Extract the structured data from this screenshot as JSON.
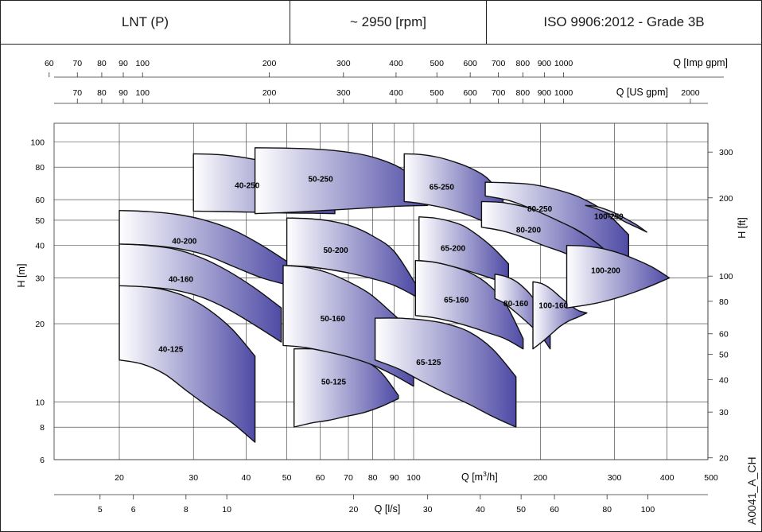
{
  "header": {
    "series_label": "LNT (P)",
    "speed_label": "~ 2950 [rpm]",
    "tolerance_label": "ISO 9906:2012 - Grade 3B"
  },
  "side_id": "A0041_A_CH",
  "colors": {
    "curve_dark": "#4f4ba6",
    "curve_light": "#ffffff",
    "outline": "#111111",
    "grid": "#333333"
  },
  "chart_data": {
    "type": "area",
    "title": "",
    "x_scale": "log",
    "y_scale": "log",
    "xlabel": "Q [m³/h]",
    "ylabel": "H [m]",
    "xlim": [
      14,
      500
    ],
    "ylim": [
      6,
      118
    ],
    "grid": true,
    "x_ticks": [
      20,
      30,
      40,
      50,
      60,
      70,
      80,
      90,
      100,
      200,
      300,
      400,
      500
    ],
    "y_ticks": [
      6,
      8,
      10,
      20,
      30,
      40,
      50,
      60,
      80,
      100
    ],
    "secondary_axes": {
      "imp_gpm": {
        "label": "Q [Imp gpm]",
        "ticks": [
          60,
          70,
          80,
          90,
          100,
          200,
          300,
          400,
          500,
          600,
          700,
          800,
          900,
          1000
        ]
      },
      "us_gpm": {
        "label": "Q [US gpm]",
        "ticks": [
          70,
          80,
          90,
          100,
          200,
          300,
          400,
          500,
          600,
          700,
          800,
          900,
          1000,
          2000
        ]
      },
      "ls": {
        "label": "Q [l/s]",
        "ticks": [
          5,
          6,
          8,
          10,
          20,
          30,
          40,
          50,
          60,
          80,
          100
        ]
      },
      "ft": {
        "label": "H [ft]",
        "ticks": [
          20,
          30,
          40,
          50,
          60,
          80,
          100,
          200,
          300
        ]
      }
    },
    "series": [
      {
        "name": "40-125",
        "q_range": [
          20,
          42
        ],
        "h_top": [
          28,
          27.8,
          27,
          25.3,
          22.5,
          19,
          15
        ],
        "h_bottom": [
          14.5,
          14,
          12.8,
          11,
          9.5,
          8.3,
          7
        ]
      },
      {
        "name": "40-160",
        "q_range": [
          20,
          48.5
        ],
        "h_top": [
          40.5,
          40,
          38.8,
          36,
          32,
          27.5,
          23
        ],
        "h_bottom": [
          28,
          27.7,
          27,
          25.4,
          22.8,
          19.8,
          17
        ]
      },
      {
        "name": "40-200",
        "q_range": [
          20,
          51
        ],
        "h_top": [
          54.5,
          54,
          52.7,
          50,
          45.8,
          40,
          34
        ],
        "h_bottom": [
          40.5,
          40.1,
          39,
          36.8,
          33.2,
          30,
          28
        ]
      },
      {
        "name": "40-250",
        "q_range": [
          30,
          65
        ],
        "h_top": [
          90,
          89.5,
          87.5,
          84,
          78,
          69,
          56
        ],
        "h_bottom": [
          54.2,
          54,
          53.8,
          53.6,
          53.3,
          53.2,
          53
        ]
      },
      {
        "name": "50-125",
        "q_range": [
          52,
          92
        ],
        "h_top": [
          16,
          16,
          15.8,
          15.5,
          14.5,
          13,
          10.6
        ],
        "h_bottom": [
          8,
          8.3,
          8.5,
          8.8,
          9.1,
          9.6,
          10.3
        ]
      },
      {
        "name": "50-160",
        "q_range": [
          49,
          100
        ],
        "h_top": [
          33.5,
          33,
          31.5,
          29,
          26,
          22,
          18.5
        ],
        "h_bottom": [
          16.5,
          16.2,
          15.6,
          14.9,
          14,
          12.8,
          11.5
        ]
      },
      {
        "name": "50-200",
        "q_range": [
          50,
          101
        ],
        "h_top": [
          51,
          50.7,
          49.7,
          47.5,
          43.5,
          38,
          28.5
        ],
        "h_bottom": [
          33.5,
          33.1,
          32.3,
          31.2,
          29.8,
          28.1,
          25.5
        ]
      },
      {
        "name": "50-250",
        "q_range": [
          42,
          108
        ],
        "h_top": [
          95,
          94.7,
          94,
          92,
          88,
          80,
          67
        ],
        "h_bottom": [
          53,
          53.5,
          54.2,
          55,
          55.8,
          56.6,
          57
        ]
      },
      {
        "name": "65-125",
        "q_range": [
          81,
          175
        ],
        "h_top": [
          21,
          21,
          20.7,
          20,
          18.6,
          16,
          12.5
        ],
        "h_bottom": [
          14.5,
          13.4,
          12,
          10.8,
          9.8,
          8.8,
          8
        ]
      },
      {
        "name": "65-160",
        "q_range": [
          101,
          182
        ],
        "h_top": [
          35,
          34.5,
          33.3,
          31.5,
          28.5,
          24,
          17.5
        ],
        "h_bottom": [
          21.5,
          21.1,
          20.4,
          19.5,
          18.5,
          17.5,
          16
        ]
      },
      {
        "name": "65-200",
        "q_range": [
          103,
          168
        ],
        "h_top": [
          51.5,
          51,
          49.7,
          47.5,
          43.5,
          39,
          34
        ],
        "h_bottom": [
          35,
          34.5,
          33.5,
          32.3,
          31,
          29.7,
          28.5
        ]
      },
      {
        "name": "65-250",
        "q_range": [
          95,
          163
        ],
        "h_top": [
          90,
          89.5,
          87.5,
          84,
          79.5,
          73,
          62
        ],
        "h_bottom": [
          59,
          58,
          56.5,
          54.5,
          52,
          49,
          47
        ]
      },
      {
        "name": "80-160",
        "q_range": [
          156,
          211
        ],
        "h_top": [
          31,
          30.5,
          29.5,
          27.8,
          25.5,
          22.5,
          19.5
        ],
        "h_bottom": [
          25,
          24,
          22.5,
          21,
          19.5,
          18,
          16
        ]
      },
      {
        "name": "80-200",
        "q_range": [
          145,
          285
        ],
        "h_top": [
          59,
          58.5,
          56.5,
          53.5,
          49,
          44,
          40
        ],
        "h_bottom": [
          47,
          45.5,
          43,
          40,
          37.5,
          34.5,
          30.5
        ]
      },
      {
        "name": "80-250",
        "q_range": [
          148,
          324
        ],
        "h_top": [
          70,
          69.6,
          68.5,
          65.5,
          61,
          54,
          44
        ],
        "h_bottom": [
          62,
          59.5,
          55,
          50,
          45,
          38.5,
          30.5
        ]
      },
      {
        "name": "100-160",
        "q_range": [
          192,
          258
        ],
        "h_top": [
          29,
          28.5,
          27.2,
          25.4,
          23.8,
          22.5,
          22
        ],
        "h_bottom": [
          16,
          17,
          18.2,
          19.5,
          20.5,
          21.2,
          22
        ]
      },
      {
        "name": "100-200",
        "q_range": [
          231,
          405
        ],
        "h_top": [
          40,
          39.8,
          39,
          37.5,
          35.4,
          33,
          30
        ],
        "h_bottom": [
          23,
          23.5,
          24.2,
          25.2,
          26.5,
          28.1,
          30
        ]
      },
      {
        "name": "100-250",
        "q_range": [
          256,
          358
        ],
        "h_top": [
          57,
          56.5,
          55,
          53,
          50.5,
          48,
          45
        ],
        "h_bottom": [
          57,
          55.5,
          53.5,
          51.5,
          49,
          47,
          45
        ]
      }
    ],
    "series_labels": [
      "40-125",
      "40-160",
      "40-200",
      "40-250",
      "50-125",
      "50-160",
      "50-200",
      "50-250",
      "65-125",
      "65-160",
      "65-200",
      "65-250",
      "80-160",
      "80-200",
      "80-250",
      "100-160",
      "100-200",
      "100-250"
    ]
  }
}
